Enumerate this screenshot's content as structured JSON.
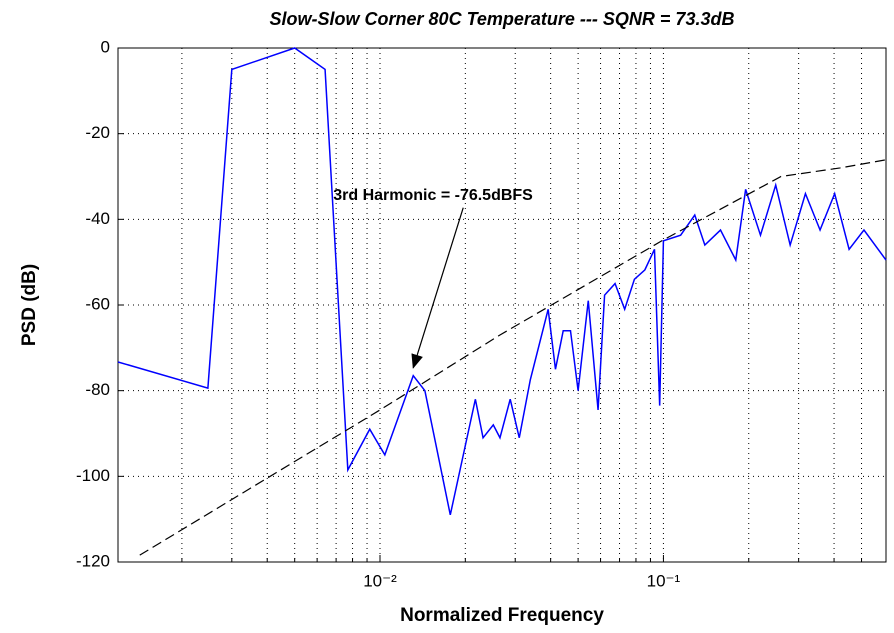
{
  "chart_data": {
    "type": "line",
    "title": "Slow-Slow Corner 80C Temperature --- SQNR = 73.3dB",
    "x_label": "Normalized Frequency",
    "y_label": "PSD (dB)",
    "xscale": "log",
    "xlim": [
      0.00119,
      0.61
    ],
    "ylim": [
      -120,
      0
    ],
    "xticks": [
      {
        "value": 0.01,
        "label": "10⁻²"
      },
      {
        "value": 0.1,
        "label": "10⁻¹"
      }
    ],
    "xminorticks": [
      0.002,
      0.003,
      0.004,
      0.005,
      0.006,
      0.007,
      0.008,
      0.009,
      0.02,
      0.03,
      0.04,
      0.05,
      0.06,
      0.07,
      0.08,
      0.09,
      0.2,
      0.3,
      0.4,
      0.5
    ],
    "yticks": [
      0,
      -20,
      -40,
      -60,
      -80,
      -100,
      -120
    ],
    "grid": true,
    "annotation": "3rd Harmonic = -76.5dBFS",
    "annotation_point": [
      0.0131,
      -76.5
    ],
    "series": [
      {
        "color": "#0000ff",
        "dash": false,
        "x": [
          0.00119,
          0.00247,
          0.003,
          0.005,
          0.0064,
          0.0077,
          0.0092,
          0.0104,
          0.0131,
          0.0144,
          0.0177,
          0.0217,
          0.0231,
          0.0251,
          0.0265,
          0.0288,
          0.031,
          0.0339,
          0.0392,
          0.0416,
          0.0443,
          0.047,
          0.05,
          0.0543,
          0.0588,
          0.062,
          0.0675,
          0.073,
          0.079,
          0.086,
          0.093,
          0.097,
          0.1,
          0.115,
          0.129,
          0.14,
          0.159,
          0.18,
          0.195,
          0.22,
          0.249,
          0.28,
          0.317,
          0.357,
          0.402,
          0.452,
          0.51,
          0.61
        ],
        "values": [
          -73.3,
          -79.4,
          -5,
          0,
          -5,
          -98.5,
          -89,
          -95,
          -76.5,
          -80,
          -109,
          -82,
          -91,
          -88,
          -91,
          -82,
          -91,
          -77.5,
          -61,
          -75,
          -66,
          -66,
          -80,
          -59,
          -84.5,
          -57.7,
          -55,
          -61,
          -54,
          -51.8,
          -47,
          -83.5,
          -45,
          -43.7,
          -39,
          -46,
          -42.5,
          -49.5,
          -33,
          -43.7,
          -32,
          -46,
          -34,
          -42.5,
          -34,
          -47,
          -42.5,
          -49.5
        ]
      },
      {
        "color": "#000000",
        "dash": true,
        "x": [
          0.00142,
          0.01,
          0.0265,
          0.1,
          0.26,
          0.42,
          0.61
        ],
        "values": [
          -118.4,
          -84.5,
          -67,
          -44.8,
          -30,
          -28,
          -26.1
        ]
      }
    ]
  }
}
